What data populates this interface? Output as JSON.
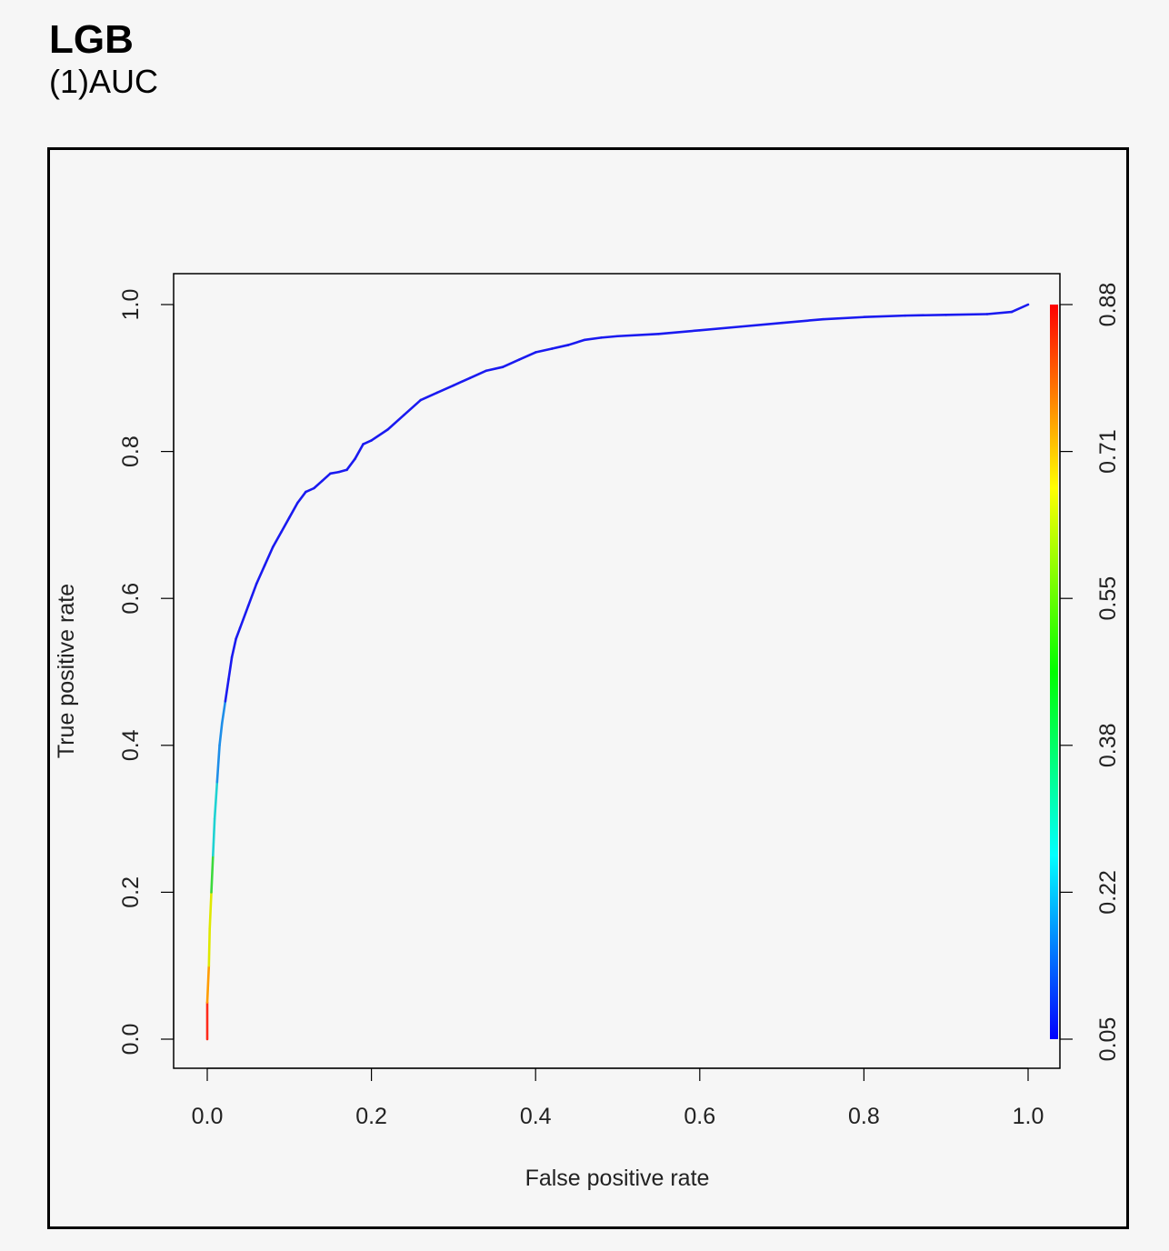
{
  "header": {
    "title": "LGB",
    "subtitle": "(1)AUC"
  },
  "chart_data": {
    "type": "line",
    "xlabel": "False positive rate",
    "ylabel": "True positive rate",
    "xlim": [
      0,
      1
    ],
    "ylim": [
      0,
      1
    ],
    "xticks": [
      "0.0",
      "0.2",
      "0.4",
      "0.6",
      "0.8",
      "1.0"
    ],
    "yticks": [
      "0.0",
      "0.2",
      "0.4",
      "0.6",
      "0.8",
      "1.0"
    ],
    "grid": false,
    "series": [
      {
        "x": [
          0.0,
          0.0,
          0.002,
          0.003,
          0.005,
          0.007,
          0.009,
          0.012,
          0.015,
          0.018,
          0.022,
          0.026,
          0.03,
          0.035,
          0.04,
          0.05,
          0.06,
          0.07,
          0.08,
          0.09,
          0.1,
          0.11,
          0.12,
          0.13,
          0.14,
          0.15,
          0.16,
          0.17,
          0.18,
          0.19,
          0.2,
          0.22,
          0.24,
          0.26,
          0.28,
          0.3,
          0.32,
          0.34,
          0.36,
          0.38,
          0.4,
          0.42,
          0.44,
          0.46,
          0.48,
          0.5,
          0.55,
          0.6,
          0.65,
          0.7,
          0.75,
          0.8,
          0.85,
          0.9,
          0.95,
          0.98,
          1.0
        ],
        "y": [
          0.0,
          0.05,
          0.1,
          0.15,
          0.2,
          0.25,
          0.3,
          0.35,
          0.4,
          0.43,
          0.46,
          0.49,
          0.52,
          0.545,
          0.56,
          0.59,
          0.62,
          0.645,
          0.67,
          0.69,
          0.71,
          0.73,
          0.745,
          0.75,
          0.76,
          0.77,
          0.772,
          0.775,
          0.79,
          0.81,
          0.815,
          0.83,
          0.85,
          0.87,
          0.88,
          0.89,
          0.9,
          0.91,
          0.915,
          0.925,
          0.935,
          0.94,
          0.945,
          0.952,
          0.955,
          0.957,
          0.96,
          0.965,
          0.97,
          0.975,
          0.98,
          0.983,
          0.985,
          0.986,
          0.987,
          0.99,
          1.0
        ]
      }
    ],
    "colorbar": {
      "ticks": [
        "0.05",
        "0.22",
        "0.38",
        "0.55",
        "0.71",
        "0.88"
      ],
      "range": [
        0.05,
        0.88
      ],
      "colors": [
        "#0000ff",
        "#00ffff",
        "#00ff00",
        "#ffff00",
        "#ff0000"
      ]
    }
  }
}
